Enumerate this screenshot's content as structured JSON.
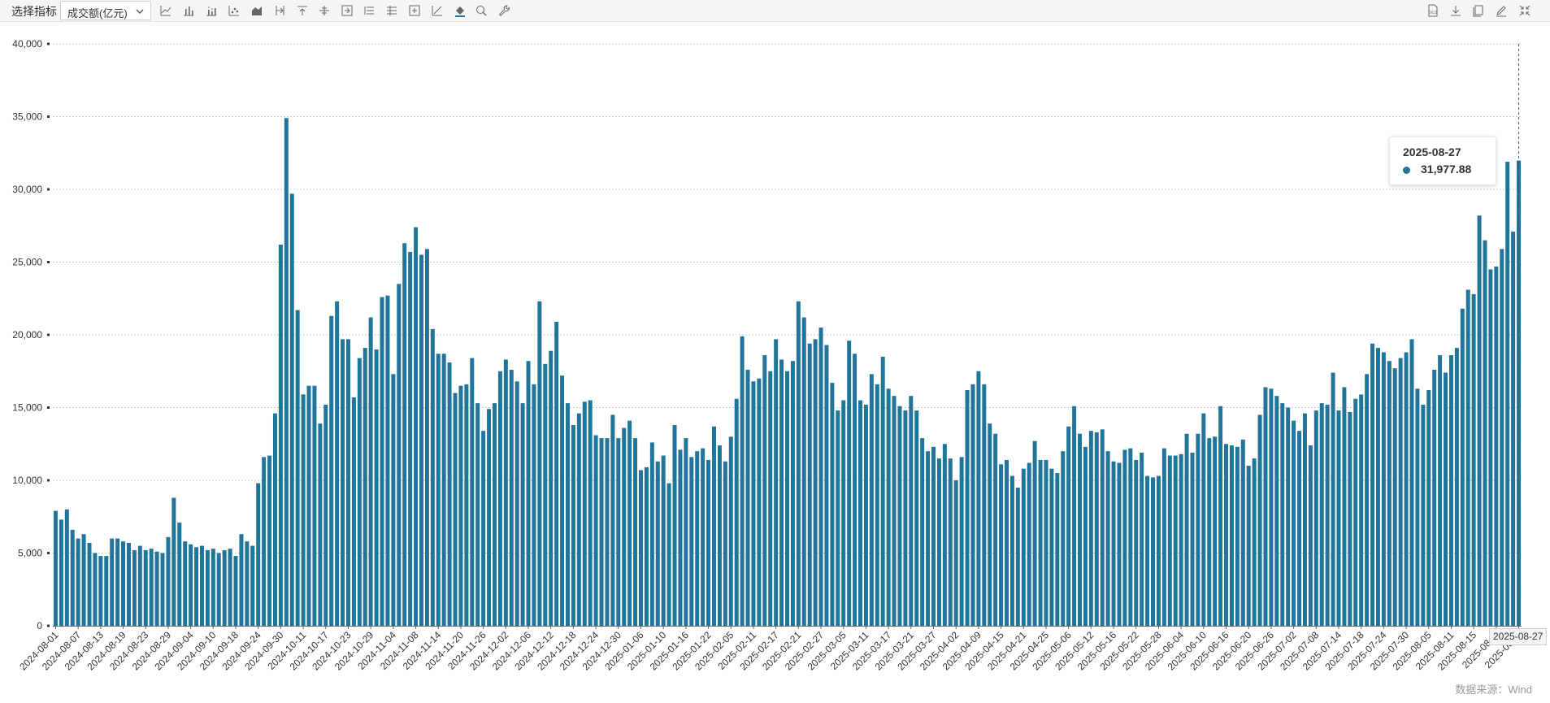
{
  "toolbar": {
    "select_label": "选择指标",
    "selected_indicator": "成交额(亿元)",
    "left_icons": [
      "line-chart-icon",
      "bar-chart-icon",
      "stacked-bar-icon",
      "scatter-icon",
      "area-chart-icon",
      "insert-column-icon",
      "align-top-icon",
      "align-middle-icon",
      "arrow-right-bar-icon",
      "list-icon",
      "tree-list-icon",
      "add-box-icon",
      "trend-icon",
      "fill-color-icon",
      "zoom-icon",
      "wrench-icon"
    ],
    "right_icons": [
      "export-excel-icon",
      "download-icon",
      "copy-icon",
      "edit-icon",
      "collapse-icon"
    ]
  },
  "tooltip": {
    "date": "2025-08-27",
    "value": "31,977.88"
  },
  "crosshair_label": "2025-08-27",
  "source": "数据来源：Wind",
  "colors": {
    "bar": "#21759b",
    "grid": "#bbbbbb",
    "axis_text": "#333333"
  },
  "chart_data": {
    "type": "bar",
    "title": "",
    "xlabel": "",
    "ylabel": "",
    "ylim": [
      0,
      40000
    ],
    "y_ticks": [
      "0",
      "5,000",
      "10,000",
      "15,000",
      "20,000",
      "25,000",
      "30,000",
      "35,000",
      "40,000"
    ],
    "y_tick_values": [
      0,
      5000,
      10000,
      15000,
      20000,
      25000,
      30000,
      35000,
      40000
    ],
    "grid": "horizontal dotted",
    "x_tick_labels": [
      "2024-08-01",
      "2024-08-07",
      "2024-08-13",
      "2024-08-19",
      "2024-08-23",
      "2024-08-29",
      "2024-09-04",
      "2024-09-10",
      "2024-09-18",
      "2024-09-24",
      "2024-09-30",
      "2024-10-11",
      "2024-10-17",
      "2024-10-23",
      "2024-10-29",
      "2024-11-04",
      "2024-11-08",
      "2024-11-14",
      "2024-11-20",
      "2024-11-26",
      "2024-12-02",
      "2024-12-06",
      "2024-12-12",
      "2024-12-18",
      "2024-12-24",
      "2024-12-30",
      "2025-01-06",
      "2025-01-10",
      "2025-01-16",
      "2025-01-22",
      "2025-02-05",
      "2025-02-11",
      "2025-02-17",
      "2025-02-21",
      "2025-02-27",
      "2025-03-05",
      "2025-03-11",
      "2025-03-17",
      "2025-03-21",
      "2025-03-27",
      "2025-04-02",
      "2025-04-09",
      "2025-04-15",
      "2025-04-21",
      "2025-04-25",
      "2025-05-06",
      "2025-05-12",
      "2025-05-16",
      "2025-05-22",
      "2025-05-28",
      "2025-06-04",
      "2025-06-10",
      "2025-06-16",
      "2025-06-20",
      "2025-06-26",
      "2025-07-02",
      "2025-07-08",
      "2025-07-14",
      "2025-07-18",
      "2025-07-24",
      "2025-07-30",
      "2025-08-05",
      "2025-08-11",
      "2025-08-15",
      "2025-08-...",
      "2025-08-..."
    ],
    "x_tick_every": 4,
    "values": [
      7900,
      7300,
      8000,
      6600,
      6000,
      6300,
      5700,
      5000,
      4800,
      4800,
      6000,
      6000,
      5800,
      5700,
      5200,
      5500,
      5200,
      5300,
      5100,
      5000,
      6100,
      8800,
      7100,
      5800,
      5600,
      5400,
      5500,
      5200,
      5300,
      5000,
      5200,
      5300,
      4800,
      6300,
      5800,
      5500,
      9800,
      11600,
      11700,
      14600,
      26200,
      34900,
      29700,
      21700,
      15900,
      16500,
      16500,
      13900,
      15200,
      21300,
      22300,
      19700,
      19700,
      15700,
      18400,
      19100,
      21200,
      19000,
      22600,
      22700,
      17300,
      23500,
      26300,
      25700,
      27400,
      25500,
      25900,
      20400,
      18700,
      18700,
      18100,
      16000,
      16500,
      16600,
      18400,
      15300,
      13400,
      14900,
      15300,
      17500,
      18300,
      17600,
      16800,
      15300,
      18200,
      16600,
      22300,
      18000,
      18900,
      20900,
      17200,
      15300,
      13800,
      14600,
      15400,
      15500,
      13100,
      12900,
      12900,
      14500,
      12900,
      13600,
      14100,
      12900,
      10700,
      10900,
      12600,
      11300,
      11700,
      9800,
      13800,
      12100,
      12900,
      11600,
      12000,
      12200,
      11400,
      13700,
      12400,
      11300,
      13000,
      15600,
      19900,
      17600,
      16800,
      17000,
      18600,
      17500,
      19700,
      18300,
      17500,
      18200,
      22300,
      21200,
      19400,
      19700,
      20500,
      19300,
      16700,
      14800,
      15500,
      19600,
      18700,
      15500,
      15200,
      17300,
      16600,
      18500,
      16300,
      15800,
      15100,
      14800,
      15800,
      14800,
      12900,
      12000,
      12300,
      11500,
      12500,
      11500,
      10000,
      11600,
      16200,
      16600,
      17500,
      16600,
      13900,
      13200,
      11100,
      11400,
      10300,
      9500,
      10800,
      11200,
      12700,
      11400,
      11400,
      10800,
      10500,
      12000,
      13700,
      15100,
      13200,
      12300,
      13400,
      13300,
      13500,
      12000,
      11300,
      11200,
      12100,
      12200,
      11400,
      11900,
      10300,
      10200,
      10300,
      12200,
      11700,
      11700,
      11800,
      13200,
      11900,
      13200,
      14600,
      12900,
      13000,
      15100,
      12500,
      12400,
      12300,
      12800,
      11000,
      11500,
      14500,
      16400,
      16300,
      15800,
      15300,
      15000,
      14100,
      13400,
      14600,
      12400,
      14800,
      15300,
      15200,
      17400,
      14800,
      16400,
      14700,
      15600,
      15900,
      17300,
      19400,
      19100,
      18800,
      18200,
      17700,
      18400,
      18800,
      19700,
      16300,
      15200,
      16200,
      17600,
      18600,
      17400,
      18600,
      19100,
      21800,
      23100,
      22800,
      28200,
      26500,
      24500,
      24700,
      25900,
      31900,
      27100,
      31978
    ]
  }
}
